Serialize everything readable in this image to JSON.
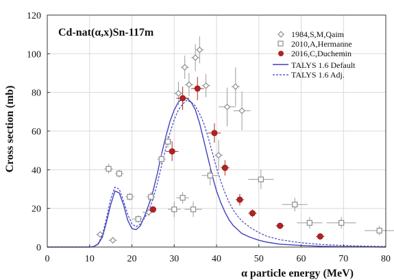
{
  "chart_data": {
    "type": "scatter",
    "title": "Cd-nat(α,x)Sn-117m",
    "xlabel": "α particle energy (MeV)",
    "ylabel": "Cross section (mb)",
    "xlim": [
      0,
      80
    ],
    "ylim": [
      0,
      120
    ],
    "xticks": [
      0,
      10,
      20,
      30,
      40,
      50,
      60,
      70,
      80
    ],
    "yticks": [
      0,
      20,
      40,
      60,
      80,
      100,
      120
    ],
    "grid": true,
    "legend_position": "top-right",
    "series": [
      {
        "name": "1984,S,M,Qaim",
        "marker": "diamond",
        "color": "#8c8c8c",
        "points": [
          {
            "x": 12.5,
            "y": 6.5,
            "xerr": 1.0,
            "yerr": 1.5
          },
          {
            "x": 15.5,
            "y": 3.5,
            "xerr": 1.0,
            "yerr": 1.0
          },
          {
            "x": 24.0,
            "y": 18.0,
            "xerr": 1.5,
            "yerr": 2.0
          },
          {
            "x": 31.0,
            "y": 79.5,
            "xerr": 1.0,
            "yerr": 6.0
          },
          {
            "x": 32.5,
            "y": 93.0,
            "xerr": 1.0,
            "yerr": 6.0
          },
          {
            "x": 33.5,
            "y": 84.0,
            "xerr": 1.0,
            "yerr": 6.0
          },
          {
            "x": 35.0,
            "y": 98.0,
            "xerr": 1.0,
            "yerr": 7.0
          },
          {
            "x": 36.0,
            "y": 102.0,
            "xerr": 1.0,
            "yerr": 7.0
          },
          {
            "x": 37.5,
            "y": 83.5,
            "xerr": 1.0,
            "yerr": 6.0
          },
          {
            "x": 40.5,
            "y": 47.5,
            "xerr": 1.0,
            "yerr": 8.0
          },
          {
            "x": 42.5,
            "y": 72.5,
            "xerr": 2.0,
            "yerr": 10.0
          },
          {
            "x": 44.5,
            "y": 83.0,
            "xerr": 1.0,
            "yerr": 10.0
          },
          {
            "x": 46.0,
            "y": 70.5,
            "xerr": 2.0,
            "yerr": 10.0
          }
        ]
      },
      {
        "name": "2010,A,Hermanne",
        "marker": "square",
        "color": "#8c8c8c",
        "points": [
          {
            "x": 14.5,
            "y": 40.5,
            "xerr": 1.0,
            "yerr": 2.5
          },
          {
            "x": 17.0,
            "y": 38.0,
            "xerr": 1.0,
            "yerr": 2.0
          },
          {
            "x": 19.5,
            "y": 26.0,
            "xerr": 1.0,
            "yerr": 2.0
          },
          {
            "x": 21.5,
            "y": 14.5,
            "xerr": 1.5,
            "yerr": 2.0
          },
          {
            "x": 24.5,
            "y": 26.0,
            "xerr": 1.0,
            "yerr": 2.5
          },
          {
            "x": 27.0,
            "y": 45.5,
            "xerr": 1.0,
            "yerr": 3.0
          },
          {
            "x": 28.5,
            "y": 54.5,
            "xerr": 1.0,
            "yerr": 3.0
          },
          {
            "x": 30.0,
            "y": 19.5,
            "xerr": 1.5,
            "yerr": 4.0
          },
          {
            "x": 32.0,
            "y": 25.5,
            "xerr": 1.5,
            "yerr": 3.0
          },
          {
            "x": 34.5,
            "y": 19.5,
            "xerr": 2.0,
            "yerr": 4.0
          },
          {
            "x": 38.5,
            "y": 37.0,
            "xerr": 2.0,
            "yerr": 5.0
          },
          {
            "x": 50.5,
            "y": 35.0,
            "xerr": 3.0,
            "yerr": 5.0
          },
          {
            "x": 58.5,
            "y": 22.0,
            "xerr": 3.0,
            "yerr": 3.5
          },
          {
            "x": 62.0,
            "y": 12.5,
            "xerr": 3.0,
            "yerr": 3.0
          },
          {
            "x": 69.5,
            "y": 12.5,
            "xerr": 3.5,
            "yerr": 3.0
          },
          {
            "x": 78.5,
            "y": 8.5,
            "xerr": 3.5,
            "yerr": 2.5
          }
        ]
      },
      {
        "name": "2016,C,Duchemin",
        "marker": "circle",
        "color": "#b22222",
        "points": [
          {
            "x": 25.0,
            "y": 19.5,
            "xerr": 0.7,
            "yerr": 1.5
          },
          {
            "x": 29.5,
            "y": 49.5,
            "xerr": 1.5,
            "yerr": 5.0
          },
          {
            "x": 32.0,
            "y": 77.0,
            "xerr": 1.5,
            "yerr": 6.0
          },
          {
            "x": 35.5,
            "y": 82.0,
            "xerr": 1.5,
            "yerr": 6.0
          },
          {
            "x": 39.5,
            "y": 59.0,
            "xerr": 1.5,
            "yerr": 5.0
          },
          {
            "x": 42.0,
            "y": 41.0,
            "xerr": 1.0,
            "yerr": 4.0
          },
          {
            "x": 45.5,
            "y": 24.5,
            "xerr": 1.0,
            "yerr": 3.0
          },
          {
            "x": 48.5,
            "y": 17.5,
            "xerr": 1.0,
            "yerr": 2.0
          },
          {
            "x": 55.0,
            "y": 11.0,
            "xerr": 1.0,
            "yerr": 1.5
          },
          {
            "x": 64.5,
            "y": 5.5,
            "xerr": 1.0,
            "yerr": 1.0
          }
        ]
      }
    ],
    "lines": [
      {
        "name": "TALYS 1.6 Default",
        "style": "solid",
        "color": "#3f3fbf",
        "x": [
          0,
          10,
          11,
          12,
          13,
          14,
          15,
          16,
          17,
          18,
          19,
          20,
          21,
          22,
          23,
          24,
          25,
          26,
          27,
          28,
          29,
          30,
          31,
          32,
          33,
          34,
          35,
          36,
          37,
          38,
          39,
          40,
          41,
          42,
          43,
          44,
          45,
          46,
          48,
          50,
          52,
          55,
          60,
          65,
          70,
          75,
          80
        ],
        "y": [
          0,
          0,
          0.3,
          1.5,
          5,
          13,
          22,
          29,
          28,
          22,
          14,
          9.5,
          9,
          11,
          16,
          22,
          29,
          38,
          48,
          57,
          65,
          71,
          75,
          77,
          77,
          75,
          71,
          64,
          55,
          46,
          37,
          29,
          23,
          18,
          14,
          11,
          9,
          7,
          5,
          3.5,
          2.5,
          1.5,
          0.8,
          0.4,
          0.2,
          0.1,
          0
        ]
      },
      {
        "name": "TALYS 1.6 Adj.",
        "style": "dashed",
        "color": "#3f3fbf",
        "x": [
          0,
          10,
          11,
          12,
          13,
          14,
          15,
          16,
          17,
          18,
          19,
          20,
          21,
          22,
          23,
          24,
          25,
          26,
          27,
          28,
          29,
          30,
          31,
          32,
          33,
          34,
          35,
          36,
          37,
          38,
          39,
          40,
          41,
          42,
          43,
          44,
          45,
          46,
          48,
          50,
          52,
          55,
          60,
          65,
          70,
          75,
          80
        ],
        "y": [
          0,
          0,
          0.3,
          1.8,
          6,
          15,
          25,
          31,
          30,
          24,
          17,
          12,
          10.5,
          12,
          15,
          19,
          25,
          33,
          42,
          51,
          59,
          66,
          71,
          74,
          76,
          75,
          73,
          69,
          64,
          57,
          49,
          41,
          34,
          28,
          23,
          19,
          16,
          13.5,
          10,
          7.5,
          5.5,
          3.8,
          2.2,
          1.3,
          0.8,
          0.5,
          0.3
        ]
      }
    ]
  }
}
